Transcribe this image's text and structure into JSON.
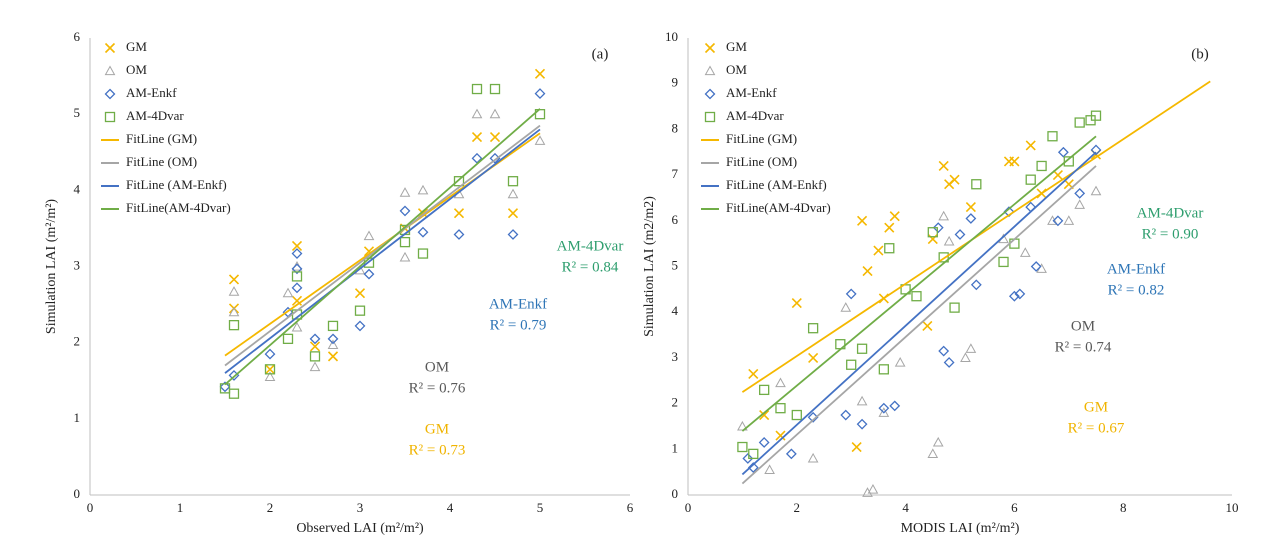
{
  "chart_data": [
    {
      "type": "scatter",
      "panel_label": "(a)",
      "x_label": "Observed LAI (m²/m²)",
      "y_label": "Simulation LAI (m²/m²)",
      "xlim": [
        0,
        6
      ],
      "xticks": [
        0,
        1,
        2,
        3,
        4,
        5,
        6
      ],
      "ylim": [
        0,
        6
      ],
      "yticks": [
        0,
        1,
        2,
        3,
        4,
        5,
        6
      ],
      "series": [
        {
          "name": "GM",
          "marker": "x",
          "color": "#f5b800",
          "x": [
            1.6,
            1.6,
            2.0,
            2.3,
            2.3,
            2.5,
            2.7,
            3.0,
            3.1,
            3.5,
            3.7,
            4.1,
            4.3,
            4.5,
            4.7,
            5.0
          ],
          "values": [
            2.83,
            2.45,
            1.65,
            3.27,
            2.55,
            1.95,
            1.82,
            2.65,
            3.2,
            3.5,
            3.7,
            3.7,
            4.7,
            4.7,
            3.7,
            5.53
          ]
        },
        {
          "name": "OM",
          "marker": "triangle",
          "color": "#a6a6a6",
          "x": [
            1.6,
            1.6,
            2.0,
            2.2,
            2.3,
            2.3,
            2.5,
            2.7,
            3.0,
            3.1,
            3.5,
            3.5,
            3.7,
            4.1,
            4.3,
            4.5,
            4.7,
            5.0
          ],
          "values": [
            2.67,
            2.4,
            1.55,
            2.65,
            3.0,
            2.2,
            1.68,
            1.97,
            2.95,
            3.4,
            3.97,
            3.12,
            4.0,
            3.95,
            5.0,
            5.0,
            3.95,
            4.65
          ]
        },
        {
          "name": "AM-Enkf",
          "marker": "diamond",
          "color": "#4472c4",
          "x": [
            1.5,
            1.6,
            2.0,
            2.2,
            2.3,
            2.3,
            2.3,
            2.5,
            2.7,
            3.0,
            3.1,
            3.5,
            3.7,
            4.1,
            4.3,
            4.5,
            4.7,
            5.0
          ],
          "values": [
            1.42,
            1.57,
            1.85,
            2.4,
            3.17,
            2.97,
            2.72,
            2.05,
            2.05,
            2.22,
            2.9,
            3.73,
            3.45,
            3.42,
            4.42,
            4.42,
            3.42,
            5.27
          ]
        },
        {
          "name": "AM-4Dvar",
          "marker": "square",
          "color": "#70ad47",
          "x": [
            1.5,
            1.6,
            1.6,
            2.0,
            2.2,
            2.3,
            2.3,
            2.5,
            2.7,
            3.0,
            3.1,
            3.5,
            3.5,
            3.7,
            4.1,
            4.3,
            4.5,
            4.7,
            5.0
          ],
          "values": [
            1.4,
            1.33,
            2.23,
            1.65,
            2.05,
            2.87,
            2.37,
            1.82,
            2.22,
            2.42,
            3.05,
            3.48,
            3.32,
            3.17,
            4.12,
            5.33,
            5.33,
            4.12,
            5.0
          ]
        },
        {
          "name": "FitLine (GM)",
          "marker": "line",
          "color": "#f5b800",
          "x": [
            1.5,
            5.0
          ],
          "values": [
            1.83,
            4.75
          ]
        },
        {
          "name": "FitLine (OM)",
          "marker": "line",
          "color": "#a6a6a6",
          "x": [
            1.5,
            5.0
          ],
          "values": [
            1.7,
            4.85
          ]
        },
        {
          "name": "FitLine (AM-Enkf)",
          "marker": "line",
          "color": "#4472c4",
          "x": [
            1.5,
            5.0
          ],
          "values": [
            1.6,
            4.8
          ]
        },
        {
          "name": "FitLine(AM-4Dvar)",
          "marker": "line",
          "color": "#70ad47",
          "x": [
            1.5,
            5.0
          ],
          "values": [
            1.45,
            5.07
          ]
        }
      ],
      "annotations": [
        {
          "lines": [
            "AM-4Dvar",
            "R² = 0.84"
          ],
          "color": "#2e9e6e"
        },
        {
          "lines": [
            "AM-Enkf",
            "R² = 0.79"
          ],
          "color": "#2e75b6"
        },
        {
          "lines": [
            "OM",
            "R² = 0.76"
          ],
          "color": "#595959"
        },
        {
          "lines": [
            "GM",
            "R² = 0.73"
          ],
          "color": "#f0b400"
        }
      ]
    },
    {
      "type": "scatter",
      "panel_label": "(b)",
      "x_label": "MODIS LAI (m²/m²)",
      "y_label": "Simulation LAI (m2/m2)",
      "xlim": [
        0,
        10
      ],
      "xticks": [
        0,
        2,
        4,
        6,
        8,
        10
      ],
      "ylim": [
        0,
        10
      ],
      "yticks": [
        0,
        1,
        2,
        3,
        4,
        5,
        6,
        7,
        8,
        9,
        10
      ],
      "series": [
        {
          "name": "GM",
          "marker": "x",
          "color": "#f5b800",
          "x": [
            1.2,
            1.4,
            1.7,
            2.0,
            2.3,
            3.1,
            3.2,
            3.3,
            3.5,
            3.6,
            3.7,
            3.8,
            4.4,
            4.5,
            4.7,
            4.8,
            4.9,
            5.2,
            5.9,
            6.0,
            6.3,
            6.5,
            6.8,
            7.0,
            7.5
          ],
          "values": [
            2.65,
            1.75,
            1.3,
            4.2,
            3.0,
            1.05,
            6.0,
            4.9,
            5.35,
            4.3,
            5.85,
            6.1,
            3.7,
            5.6,
            7.2,
            6.8,
            6.9,
            6.3,
            7.3,
            7.3,
            7.65,
            6.6,
            7.0,
            6.8,
            7.45
          ]
        },
        {
          "name": "OM",
          "marker": "triangle",
          "color": "#a6a6a6",
          "x": [
            1.0,
            1.5,
            1.7,
            2.3,
            2.9,
            3.2,
            3.3,
            3.4,
            3.6,
            3.9,
            4.5,
            4.6,
            4.7,
            4.8,
            5.1,
            5.2,
            5.8,
            6.2,
            6.5,
            6.7,
            7.0,
            7.2,
            7.5
          ],
          "values": [
            1.5,
            0.55,
            2.45,
            0.8,
            4.1,
            2.05,
            0.05,
            0.12,
            1.8,
            2.9,
            0.9,
            1.15,
            6.1,
            5.55,
            3.0,
            3.2,
            5.6,
            5.3,
            4.95,
            6.0,
            6.0,
            6.35,
            6.65
          ]
        },
        {
          "name": "AM-Enkf",
          "marker": "diamond",
          "color": "#4472c4",
          "x": [
            1.1,
            1.2,
            1.4,
            1.9,
            2.3,
            2.9,
            3.0,
            3.2,
            3.6,
            3.8,
            4.6,
            4.7,
            4.8,
            5.0,
            5.2,
            5.3,
            5.9,
            6.0,
            6.1,
            6.3,
            6.4,
            6.8,
            6.9,
            7.2,
            7.5
          ],
          "values": [
            0.8,
            0.6,
            1.15,
            0.9,
            1.7,
            1.75,
            4.4,
            1.55,
            1.9,
            1.95,
            5.85,
            3.15,
            2.9,
            5.7,
            6.05,
            4.6,
            6.2,
            4.35,
            4.4,
            6.3,
            5.0,
            6.0,
            7.5,
            6.6,
            7.55
          ]
        },
        {
          "name": "AM-4Dvar",
          "marker": "square",
          "color": "#70ad47",
          "x": [
            1.0,
            1.2,
            1.4,
            1.7,
            2.0,
            2.3,
            2.8,
            3.0,
            3.2,
            3.6,
            3.7,
            4.0,
            4.2,
            4.5,
            4.7,
            4.9,
            5.3,
            5.8,
            6.0,
            6.3,
            6.5,
            6.7,
            7.0,
            7.2,
            7.4,
            7.5
          ],
          "values": [
            1.05,
            0.9,
            2.3,
            1.9,
            1.75,
            3.65,
            3.3,
            2.85,
            3.2,
            2.75,
            5.4,
            4.5,
            4.35,
            5.75,
            5.2,
            4.1,
            6.8,
            5.1,
            5.5,
            6.9,
            7.2,
            7.85,
            7.3,
            8.15,
            8.2,
            8.3
          ]
        },
        {
          "name": "FitLine (GM)",
          "marker": "line",
          "color": "#f5b800",
          "x": [
            1.0,
            9.6
          ],
          "values": [
            2.25,
            9.05
          ]
        },
        {
          "name": "FitLine (OM)",
          "marker": "line",
          "color": "#a6a6a6",
          "x": [
            1.0,
            7.5
          ],
          "values": [
            0.25,
            7.2
          ]
        },
        {
          "name": "FitLine (AM-Enkf)",
          "marker": "line",
          "color": "#4472c4",
          "x": [
            1.0,
            7.5
          ],
          "values": [
            0.45,
            7.5
          ]
        },
        {
          "name": "FitLine(AM-4Dvar)",
          "marker": "line",
          "color": "#70ad47",
          "x": [
            1.0,
            7.5
          ],
          "values": [
            1.4,
            7.85
          ]
        }
      ],
      "annotations": [
        {
          "lines": [
            "AM-4Dvar",
            "R² = 0.90"
          ],
          "color": "#2e9e6e"
        },
        {
          "lines": [
            "AM-Enkf",
            "R² = 0.82"
          ],
          "color": "#2e75b6"
        },
        {
          "lines": [
            "OM",
            "R² = 0.74"
          ],
          "color": "#595959"
        },
        {
          "lines": [
            "GM",
            "R² = 0.67"
          ],
          "color": "#f0b400"
        }
      ]
    }
  ]
}
